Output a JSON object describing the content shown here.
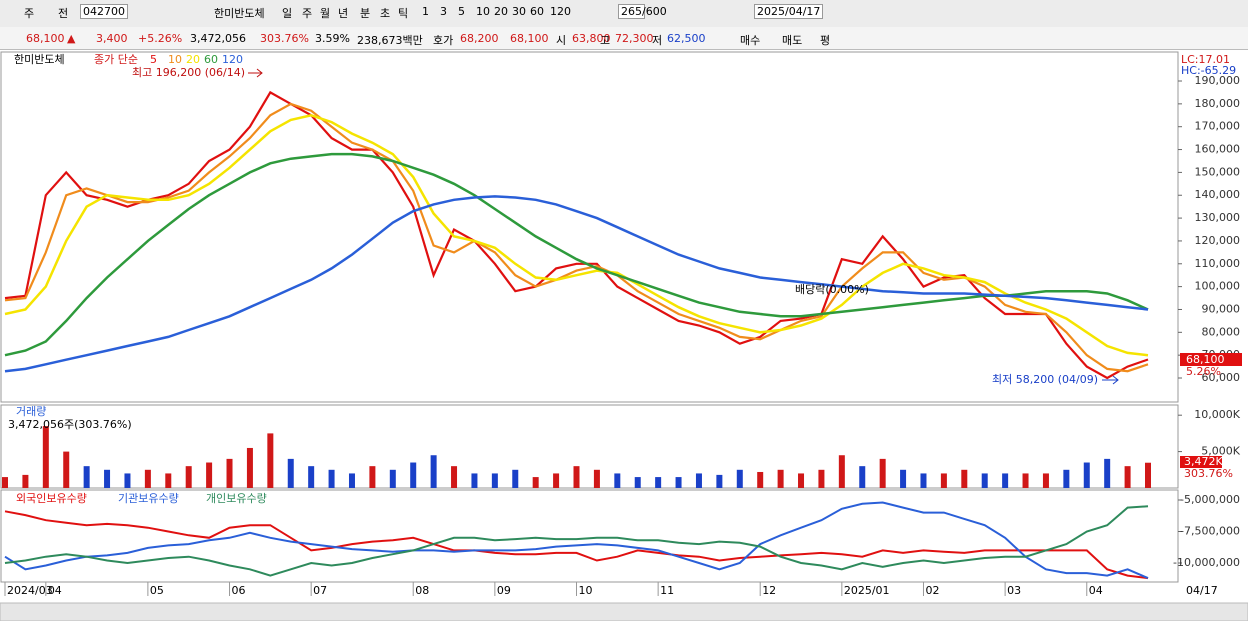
{
  "toolbar": {
    "items": [
      "주",
      "전",
      "042700",
      "한미반도체",
      "일",
      "주",
      "월",
      "년",
      "분",
      "초",
      "틱",
      "1",
      "3",
      "5",
      "10",
      "20",
      "30",
      "60",
      "120",
      "265",
      "/600",
      "2025/04/17"
    ]
  },
  "info": {
    "items": [
      "68,100",
      "▲",
      "3,400",
      "+5.26%",
      "3,472,056",
      "303.76%",
      "3.59%",
      "238,673백만",
      "호가",
      "68,200",
      "68,100",
      "시",
      "63,800",
      "고",
      "72,300",
      "저",
      "62,500",
      "매수",
      "매도",
      "평"
    ]
  },
  "chart_data": [
    {
      "type": "line",
      "title": "한미반도체",
      "subtitle": "종가 단순",
      "annotations": [
        "최고 196,200 (06/14)",
        "배당락(0.00%)",
        "최저 58,200 (04/09)"
      ],
      "corner_labels": [
        "LC:17.01",
        "HC:-65.29"
      ],
      "last_label": "68,100",
      "change_label": "5.26%",
      "ylim": [
        49500,
        202700
      ],
      "yticks": [
        {
          "value": 60000,
          "label": "60,000"
        },
        {
          "value": 70000,
          "label": "70,000"
        },
        {
          "value": 80000,
          "label": "80,000"
        },
        {
          "value": 90000,
          "label": "90,000"
        },
        {
          "value": 100000,
          "label": "100,000"
        },
        {
          "value": 110000,
          "label": "110,000"
        },
        {
          "value": 120000,
          "label": "120,000"
        },
        {
          "value": 130000,
          "label": "130,000"
        },
        {
          "value": 140000,
          "label": "140,000"
        },
        {
          "value": 150000,
          "label": "150,000"
        },
        {
          "value": 160000,
          "label": "160,000"
        },
        {
          "value": 170000,
          "label": "170,000"
        },
        {
          "value": 180000,
          "label": "180,000"
        },
        {
          "value": 190000,
          "label": "190,000"
        }
      ],
      "series": [
        {
          "name": "5",
          "color": "#e01010",
          "values": [
            95000,
            96000,
            140000,
            150000,
            140000,
            138000,
            135000,
            138000,
            140000,
            145000,
            155000,
            160000,
            170000,
            185000,
            180000,
            175000,
            165000,
            160000,
            160000,
            150000,
            135000,
            105000,
            125000,
            120000,
            110000,
            98000,
            100000,
            108000,
            110000,
            110000,
            100000,
            95000,
            90000,
            85000,
            83000,
            80000,
            75000,
            78000,
            85000,
            86000,
            88000,
            112000,
            110000,
            122000,
            112000,
            100000,
            104000,
            105000,
            95000,
            88000,
            88000,
            88000,
            75000,
            65000,
            60000,
            65000,
            68100
          ]
        },
        {
          "name": "10",
          "color": "#f08c1c",
          "values": [
            94000,
            95000,
            115000,
            140000,
            143000,
            140000,
            137000,
            137000,
            139000,
            142000,
            150000,
            157000,
            165000,
            175000,
            180000,
            177000,
            170000,
            163000,
            160000,
            155000,
            142000,
            118000,
            115000,
            120000,
            115000,
            105000,
            100000,
            103000,
            107000,
            109000,
            105000,
            98000,
            93000,
            88000,
            85000,
            82000,
            78000,
            77000,
            81000,
            85000,
            87000,
            100000,
            108000,
            115000,
            115000,
            106000,
            103000,
            104000,
            100000,
            92000,
            89000,
            88000,
            80000,
            70000,
            64000,
            63000,
            66000
          ]
        },
        {
          "name": "20",
          "color": "#f5e400",
          "values": [
            88000,
            90000,
            100000,
            120000,
            135000,
            140000,
            139000,
            138000,
            138000,
            140000,
            145000,
            152000,
            160000,
            168000,
            173000,
            175000,
            172000,
            167000,
            163000,
            158000,
            148000,
            132000,
            122000,
            120000,
            117000,
            110000,
            104000,
            103000,
            105000,
            107000,
            106000,
            101000,
            96000,
            91000,
            87000,
            84000,
            82000,
            80000,
            81000,
            83000,
            86000,
            92000,
            100000,
            106000,
            110000,
            108000,
            105000,
            104000,
            102000,
            97000,
            93000,
            90000,
            86000,
            80000,
            74000,
            71000,
            70000
          ]
        },
        {
          "name": "60",
          "color": "#2e9a3c",
          "values": [
            70000,
            72000,
            76000,
            85000,
            95000,
            104000,
            112000,
            120000,
            127000,
            134000,
            140000,
            145000,
            150000,
            154000,
            156000,
            157000,
            158000,
            158000,
            157000,
            155000,
            152000,
            149000,
            145000,
            140000,
            134000,
            128000,
            122000,
            117000,
            112000,
            108000,
            105000,
            102000,
            99000,
            96000,
            93000,
            91000,
            89000,
            88000,
            87000,
            87000,
            88000,
            89000,
            90000,
            91000,
            92000,
            93000,
            94000,
            95000,
            96000,
            96000,
            97000,
            98000,
            98000,
            98000,
            97000,
            94000,
            90000
          ]
        },
        {
          "name": "120",
          "color": "#2a5fd8",
          "values": [
            63000,
            64000,
            66000,
            68000,
            70000,
            72000,
            74000,
            76000,
            78000,
            81000,
            84000,
            87000,
            91000,
            95000,
            99000,
            103000,
            108000,
            114000,
            121000,
            128000,
            133000,
            136000,
            138000,
            139000,
            139500,
            139000,
            138000,
            136000,
            133000,
            130000,
            126000,
            122000,
            118000,
            114000,
            111000,
            108000,
            106000,
            104000,
            103000,
            102000,
            101000,
            100000,
            99000,
            98000,
            97500,
            97000,
            97000,
            97000,
            96500,
            96000,
            95500,
            95000,
            94000,
            93000,
            92000,
            91000,
            90000
          ]
        }
      ]
    },
    {
      "type": "bar",
      "title": "거래량",
      "subtitle": "3,472,056주(303.76%)",
      "last_label": "3,472K",
      "change_label": "303.76%",
      "up_color": "#d01818",
      "down_color": "#1a40c8",
      "ylim": [
        0,
        11400
      ],
      "yticks": [
        {
          "value": 5000,
          "label": "5,000K"
        },
        {
          "value": 10000,
          "label": "10,000K"
        }
      ],
      "values": [
        1500,
        1800,
        8500,
        5000,
        3000,
        2500,
        2000,
        2500,
        2000,
        3000,
        3500,
        4000,
        5500,
        7500,
        4000,
        3000,
        2500,
        2000,
        3000,
        2500,
        3500,
        4500,
        3000,
        2000,
        2000,
        2500,
        1500,
        2000,
        3000,
        2500,
        2000,
        1500,
        1500,
        1500,
        2000,
        1800,
        2500,
        2200,
        2500,
        2000,
        2500,
        4500,
        3000,
        4000,
        2500,
        2000,
        2000,
        2500,
        2000,
        2000,
        2000,
        2000,
        2500,
        3500,
        4000,
        3000,
        3472
      ]
    },
    {
      "type": "line",
      "end_label": "04/17",
      "categories": [
        "2024/03",
        null,
        "04",
        null,
        null,
        null,
        null,
        "05",
        null,
        null,
        null,
        "06",
        null,
        null,
        null,
        "07",
        null,
        null,
        null,
        null,
        "08",
        null,
        null,
        null,
        "09",
        null,
        null,
        null,
        "10",
        null,
        null,
        null,
        "11",
        null,
        null,
        null,
        null,
        "12",
        null,
        null,
        null,
        "2025/01",
        null,
        null,
        null,
        "02",
        null,
        null,
        null,
        "03",
        null,
        null,
        null,
        "04",
        null,
        null,
        null
      ],
      "ylim": [
        -11508000,
        -4206000
      ],
      "yticks": [
        {
          "value": -5000000,
          "label": "-5,000,000"
        },
        {
          "value": -7500000,
          "label": "-7,500,000"
        },
        {
          "value": -10000000,
          "label": "-10,000,000"
        }
      ],
      "series": [
        {
          "name": "외국인보유수량",
          "color": "#e01010",
          "values": [
            -5900000,
            -6200000,
            -6600000,
            -6800000,
            -7000000,
            -6900000,
            -7000000,
            -7200000,
            -7500000,
            -7800000,
            -8000000,
            -7200000,
            -7000000,
            -7000000,
            -8000000,
            -9000000,
            -8800000,
            -8500000,
            -8300000,
            -8200000,
            -8000000,
            -8500000,
            -9000000,
            -9000000,
            -9200000,
            -9300000,
            -9300000,
            -9200000,
            -9200000,
            -9800000,
            -9500000,
            -9000000,
            -9200000,
            -9400000,
            -9500000,
            -9800000,
            -9600000,
            -9500000,
            -9400000,
            -9300000,
            -9200000,
            -9300000,
            -9500000,
            -9000000,
            -9200000,
            -9000000,
            -9100000,
            -9200000,
            -9000000,
            -9000000,
            -9000000,
            -9000000,
            -9000000,
            -9000000,
            -10500000,
            -11000000,
            -11200000
          ]
        },
        {
          "name": "기관보유수량",
          "color": "#2a5fd8",
          "values": [
            -9500000,
            -10500000,
            -10200000,
            -9800000,
            -9500000,
            -9400000,
            -9200000,
            -8800000,
            -8600000,
            -8500000,
            -8200000,
            -8000000,
            -7600000,
            -8000000,
            -8300000,
            -8500000,
            -8700000,
            -8900000,
            -9000000,
            -9100000,
            -9000000,
            -9000000,
            -9100000,
            -9000000,
            -9000000,
            -9000000,
            -8900000,
            -8700000,
            -8600000,
            -8500000,
            -8600000,
            -8800000,
            -9000000,
            -9500000,
            -10000000,
            -10500000,
            -10000000,
            -8500000,
            -7800000,
            -7200000,
            -6600000,
            -5700000,
            -5300000,
            -5200000,
            -5600000,
            -6000000,
            -6000000,
            -6500000,
            -7000000,
            -8000000,
            -9500000,
            -10500000,
            -10800000,
            -10800000,
            -11000000,
            -10500000,
            -11200000
          ]
        },
        {
          "name": "개인보유수량",
          "color": "#2e8a5c",
          "values": [
            -10000000,
            -9800000,
            -9500000,
            -9300000,
            -9500000,
            -9800000,
            -10000000,
            -9800000,
            -9600000,
            -9500000,
            -9800000,
            -10200000,
            -10500000,
            -11000000,
            -10500000,
            -10000000,
            -10200000,
            -10000000,
            -9600000,
            -9300000,
            -9000000,
            -8500000,
            -8000000,
            -8000000,
            -8200000,
            -8100000,
            -8000000,
            -8100000,
            -8100000,
            -8000000,
            -8000000,
            -8200000,
            -8200000,
            -8400000,
            -8500000,
            -8300000,
            -8400000,
            -8700000,
            -9500000,
            -10000000,
            -10200000,
            -10500000,
            -10000000,
            -10300000,
            -10000000,
            -9800000,
            -10000000,
            -9800000,
            -9600000,
            -9500000,
            -9500000,
            -9000000,
            -8500000,
            -7500000,
            -7000000,
            -5600000,
            -5500000
          ]
        }
      ]
    }
  ]
}
